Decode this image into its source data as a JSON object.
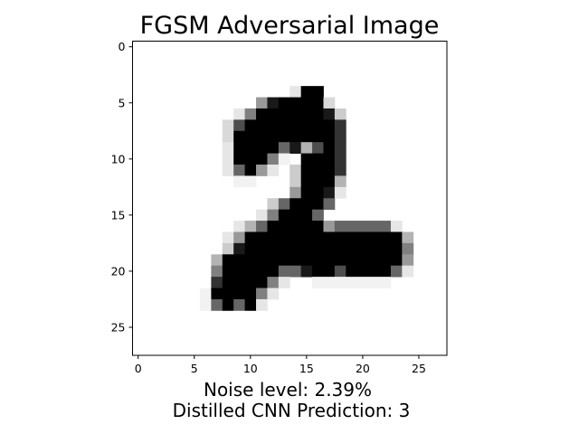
{
  "chart_data": {
    "type": "heatmap",
    "title": "FGSM Adversarial Image",
    "colormap": "gray_r",
    "value_range": [
      0,
      1
    ],
    "shape": [
      28,
      28
    ],
    "xlim": [
      -0.5,
      27.5
    ],
    "ylim": [
      27.5,
      -0.5
    ],
    "x_ticks": [
      0,
      5,
      10,
      15,
      20,
      25
    ],
    "y_ticks": [
      0,
      5,
      10,
      15,
      20,
      25
    ],
    "x_tick_labels": [
      "0",
      "5",
      "10",
      "15",
      "20",
      "25"
    ],
    "y_tick_labels": [
      "0",
      "5",
      "10",
      "15",
      "20",
      "25"
    ],
    "xlabel_lines": [
      "Noise level: 2.39%",
      "Distilled CNN Prediction: 3"
    ],
    "grid": false,
    "nonzero_pixels": [
      [
        4,
        14,
        0.1
      ],
      [
        4,
        15,
        1.0
      ],
      [
        4,
        16,
        1.0
      ],
      [
        5,
        11,
        0.4
      ],
      [
        5,
        12,
        0.9
      ],
      [
        5,
        13,
        1.0
      ],
      [
        5,
        14,
        1.0
      ],
      [
        5,
        15,
        1.0
      ],
      [
        5,
        16,
        1.0
      ],
      [
        5,
        17,
        0.15
      ],
      [
        6,
        9,
        0.1
      ],
      [
        6,
        10,
        0.5
      ],
      [
        6,
        11,
        1.0
      ],
      [
        6,
        12,
        1.0
      ],
      [
        6,
        13,
        1.0
      ],
      [
        6,
        14,
        1.0
      ],
      [
        6,
        15,
        1.0
      ],
      [
        6,
        16,
        1.0
      ],
      [
        6,
        17,
        0.9
      ],
      [
        6,
        18,
        0.2
      ],
      [
        7,
        8,
        0.15
      ],
      [
        7,
        9,
        0.7
      ],
      [
        7,
        10,
        1.0
      ],
      [
        7,
        11,
        1.0
      ],
      [
        7,
        12,
        1.0
      ],
      [
        7,
        13,
        1.0
      ],
      [
        7,
        14,
        1.0
      ],
      [
        7,
        15,
        1.0
      ],
      [
        7,
        16,
        1.0
      ],
      [
        7,
        17,
        1.0
      ],
      [
        7,
        18,
        0.8
      ],
      [
        8,
        8,
        0.15
      ],
      [
        8,
        9,
        1.0
      ],
      [
        8,
        10,
        1.0
      ],
      [
        8,
        11,
        1.0
      ],
      [
        8,
        12,
        1.0
      ],
      [
        8,
        13,
        1.0
      ],
      [
        8,
        14,
        1.0
      ],
      [
        8,
        15,
        1.0
      ],
      [
        8,
        16,
        1.0
      ],
      [
        8,
        17,
        1.0
      ],
      [
        8,
        18,
        0.8
      ],
      [
        9,
        8,
        0.1
      ],
      [
        9,
        9,
        1.0
      ],
      [
        9,
        10,
        1.0
      ],
      [
        9,
        11,
        1.0
      ],
      [
        9,
        12,
        1.0
      ],
      [
        9,
        13,
        0.6
      ],
      [
        9,
        14,
        0.9
      ],
      [
        9,
        15,
        0.3
      ],
      [
        9,
        16,
        0.7
      ],
      [
        9,
        17,
        1.0
      ],
      [
        9,
        18,
        0.8
      ],
      [
        10,
        8,
        0.1
      ],
      [
        10,
        9,
        1.0
      ],
      [
        10,
        10,
        1.0
      ],
      [
        10,
        11,
        1.0
      ],
      [
        10,
        12,
        0.5
      ],
      [
        10,
        13,
        0.05
      ],
      [
        10,
        15,
        1.0
      ],
      [
        10,
        16,
        1.0
      ],
      [
        10,
        17,
        1.0
      ],
      [
        10,
        18,
        0.8
      ],
      [
        11,
        8,
        0.1
      ],
      [
        11,
        9,
        0.6
      ],
      [
        11,
        10,
        1.0
      ],
      [
        11,
        11,
        0.4
      ],
      [
        11,
        12,
        0.1
      ],
      [
        11,
        14,
        0.2
      ],
      [
        11,
        15,
        1.0
      ],
      [
        11,
        16,
        1.0
      ],
      [
        11,
        17,
        1.0
      ],
      [
        11,
        18,
        0.8
      ],
      [
        12,
        9,
        0.05
      ],
      [
        12,
        10,
        0.05
      ],
      [
        12,
        14,
        0.2
      ],
      [
        12,
        15,
        1.0
      ],
      [
        12,
        16,
        1.0
      ],
      [
        12,
        17,
        1.0
      ],
      [
        12,
        18,
        0.3
      ],
      [
        13,
        14,
        0.4
      ],
      [
        13,
        15,
        1.0
      ],
      [
        13,
        16,
        1.0
      ],
      [
        13,
        17,
        0.9
      ],
      [
        13,
        18,
        0.1
      ],
      [
        14,
        12,
        0.2
      ],
      [
        14,
        13,
        0.6
      ],
      [
        14,
        14,
        1.0
      ],
      [
        14,
        15,
        1.0
      ],
      [
        14,
        16,
        1.0
      ],
      [
        14,
        17,
        0.6
      ],
      [
        15,
        11,
        0.1
      ],
      [
        15,
        12,
        0.5
      ],
      [
        15,
        13,
        1.0
      ],
      [
        15,
        14,
        1.0
      ],
      [
        15,
        15,
        1.0
      ],
      [
        15,
        16,
        0.6
      ],
      [
        16,
        9,
        0.1
      ],
      [
        16,
        10,
        0.3
      ],
      [
        16,
        11,
        0.6
      ],
      [
        16,
        12,
        1.0
      ],
      [
        16,
        13,
        1.0
      ],
      [
        16,
        14,
        1.0
      ],
      [
        16,
        15,
        1.0
      ],
      [
        16,
        16,
        1.0
      ],
      [
        16,
        17,
        0.4
      ],
      [
        16,
        18,
        0.6
      ],
      [
        16,
        19,
        0.6
      ],
      [
        16,
        20,
        0.6
      ],
      [
        16,
        21,
        0.6
      ],
      [
        16,
        22,
        0.6
      ],
      [
        16,
        23,
        0.1
      ],
      [
        17,
        8,
        0.1
      ],
      [
        17,
        9,
        0.4
      ],
      [
        17,
        10,
        1.0
      ],
      [
        17,
        11,
        1.0
      ],
      [
        17,
        12,
        1.0
      ],
      [
        17,
        13,
        1.0
      ],
      [
        17,
        14,
        1.0
      ],
      [
        17,
        15,
        1.0
      ],
      [
        17,
        16,
        1.0
      ],
      [
        17,
        17,
        1.0
      ],
      [
        17,
        18,
        1.0
      ],
      [
        17,
        19,
        1.0
      ],
      [
        17,
        20,
        1.0
      ],
      [
        17,
        21,
        1.0
      ],
      [
        17,
        22,
        1.0
      ],
      [
        17,
        23,
        1.0
      ],
      [
        17,
        24,
        0.3
      ],
      [
        18,
        8,
        0.2
      ],
      [
        18,
        9,
        0.9
      ],
      [
        18,
        10,
        1.0
      ],
      [
        18,
        11,
        1.0
      ],
      [
        18,
        12,
        1.0
      ],
      [
        18,
        13,
        1.0
      ],
      [
        18,
        14,
        1.0
      ],
      [
        18,
        15,
        1.0
      ],
      [
        18,
        16,
        1.0
      ],
      [
        18,
        17,
        1.0
      ],
      [
        18,
        18,
        1.0
      ],
      [
        18,
        19,
        1.0
      ],
      [
        18,
        20,
        1.0
      ],
      [
        18,
        21,
        1.0
      ],
      [
        18,
        22,
        1.0
      ],
      [
        18,
        23,
        1.0
      ],
      [
        18,
        24,
        0.5
      ],
      [
        19,
        7,
        0.3
      ],
      [
        19,
        8,
        1.0
      ],
      [
        19,
        9,
        1.0
      ],
      [
        19,
        10,
        1.0
      ],
      [
        19,
        11,
        1.0
      ],
      [
        19,
        12,
        1.0
      ],
      [
        19,
        13,
        1.0
      ],
      [
        19,
        14,
        1.0
      ],
      [
        19,
        15,
        1.0
      ],
      [
        19,
        16,
        1.0
      ],
      [
        19,
        17,
        1.0
      ],
      [
        19,
        18,
        1.0
      ],
      [
        19,
        19,
        1.0
      ],
      [
        19,
        20,
        1.0
      ],
      [
        19,
        21,
        1.0
      ],
      [
        19,
        22,
        1.0
      ],
      [
        19,
        23,
        1.0
      ],
      [
        19,
        24,
        0.4
      ],
      [
        20,
        7,
        0.5
      ],
      [
        20,
        8,
        1.0
      ],
      [
        20,
        9,
        1.0
      ],
      [
        20,
        10,
        1.0
      ],
      [
        20,
        11,
        1.0
      ],
      [
        20,
        12,
        1.0
      ],
      [
        20,
        13,
        0.6
      ],
      [
        20,
        14,
        0.6
      ],
      [
        20,
        15,
        0.9
      ],
      [
        20,
        16,
        1.0
      ],
      [
        20,
        17,
        1.0
      ],
      [
        20,
        18,
        0.7
      ],
      [
        20,
        19,
        1.0
      ],
      [
        20,
        20,
        1.0
      ],
      [
        20,
        21,
        1.0
      ],
      [
        20,
        22,
        1.0
      ],
      [
        20,
        23,
        0.6
      ],
      [
        20,
        24,
        0.1
      ],
      [
        21,
        7,
        0.8
      ],
      [
        21,
        8,
        1.0
      ],
      [
        21,
        9,
        1.0
      ],
      [
        21,
        10,
        1.0
      ],
      [
        21,
        11,
        1.0
      ],
      [
        21,
        12,
        0.5
      ],
      [
        21,
        13,
        0.1
      ],
      [
        21,
        16,
        0.05
      ],
      [
        21,
        17,
        0.05
      ],
      [
        21,
        18,
        0.05
      ],
      [
        21,
        19,
        0.05
      ],
      [
        21,
        20,
        0.05
      ],
      [
        21,
        21,
        0.05
      ],
      [
        21,
        22,
        0.05
      ],
      [
        22,
        6,
        0.05
      ],
      [
        22,
        7,
        1.0
      ],
      [
        22,
        8,
        1.0
      ],
      [
        22,
        9,
        1.0
      ],
      [
        22,
        10,
        1.0
      ],
      [
        22,
        11,
        0.5
      ],
      [
        22,
        12,
        0.1
      ],
      [
        23,
        6,
        0.05
      ],
      [
        23,
        7,
        0.6
      ],
      [
        23,
        8,
        1.0
      ],
      [
        23,
        9,
        0.6
      ],
      [
        23,
        10,
        1.0
      ],
      [
        23,
        11,
        0.1
      ]
    ]
  }
}
